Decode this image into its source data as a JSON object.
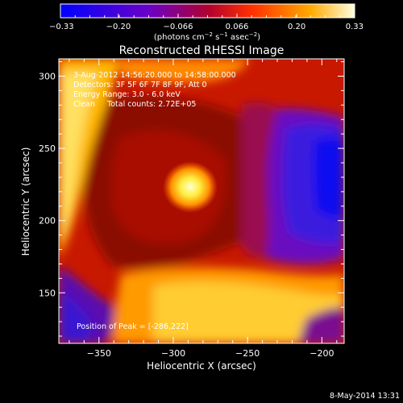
{
  "chart_data": {
    "type": "heatmap",
    "title": "Reconstructed RHESSI Image",
    "xlabel": "Heliocentric X (arcsec)",
    "ylabel": "Heliocentric Y (arcsec)",
    "xlim": [
      -377,
      -185
    ],
    "ylim": [
      115,
      312
    ],
    "x_ticks": [
      -350,
      -300,
      -250,
      -200
    ],
    "y_ticks": [
      150,
      200,
      250,
      300
    ],
    "x_tick_labels": [
      "−350",
      "−300",
      "−250",
      "−200"
    ],
    "y_tick_labels": [
      "150",
      "200",
      "250",
      "300"
    ],
    "colorbar": {
      "range": [
        -0.33,
        0.33
      ],
      "ticks": [
        -0.33,
        -0.2,
        -0.066,
        0.066,
        0.2,
        0.33
      ],
      "tick_labels": [
        "−0.33",
        "−0.20",
        "−0.066",
        "0.066",
        "0.20",
        "0.33"
      ],
      "unit_main": "(photons cm",
      "unit_sup1": "−2",
      "unit_mid": " s",
      "unit_sup2": "−1",
      "unit_mid2": " asec",
      "unit_sup3": "−2",
      "unit_end": ")"
    },
    "annotations": {
      "time_range": "3-Aug-2012 14:56:20.000 to 14:58:00.000",
      "detectors": "Detectors: 3F 5F 6F 7F 8F 9F, Att 0",
      "energy": "Energy Range: 3.0 - 6.0 keV",
      "clean": "Clean     Total counts: 2.72E+05",
      "peak": "Position of Peak = [-286,222]"
    },
    "peak": {
      "x": -286,
      "y": 222
    },
    "footer_date": "8-May-2014 13:31"
  }
}
